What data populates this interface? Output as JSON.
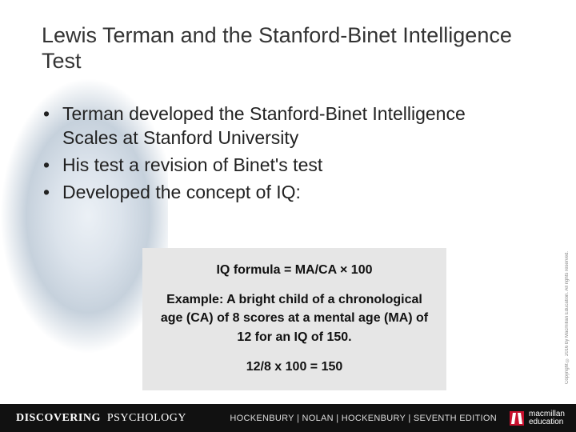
{
  "title": "Lewis Terman and the Stanford-Binet Intelligence Test",
  "bullets": {
    "item1": "Terman developed the Stanford-Binet Intelligence Scales at Stanford University",
    "item2": "His test a revision of Binet's test",
    "item3": "Developed the concept of IQ:"
  },
  "formula_box": {
    "formula": "IQ formula = MA/CA × 100",
    "example": "Example: A bright child of a chronological age (CA) of 8 scores at a mental age (MA) of 12 for an IQ of 150.",
    "calc": "12/8 x 100 = 150",
    "bg_color": "#e6e6e6",
    "font_size": 16,
    "font_weight": "bold"
  },
  "right_caption": "Copyright © 2016 by Macmillan Education. All rights reserved.",
  "footer": {
    "discovering": "DISCOVERING",
    "psychology": "PSYCHOLOGY",
    "authors": "HOCKENBURY | NOLAN | HOCKENBURY |  SEVENTH EDITION",
    "publisher_line1": "macmillan",
    "publisher_line2": "education",
    "bg_color": "#111111",
    "logo_color": "#c8102e"
  },
  "colors": {
    "title_color": "#333333",
    "body_color": "#222222",
    "bg": "#ffffff"
  },
  "typography": {
    "title_size": 27,
    "bullet_size": 23,
    "formula_size": 16
  }
}
